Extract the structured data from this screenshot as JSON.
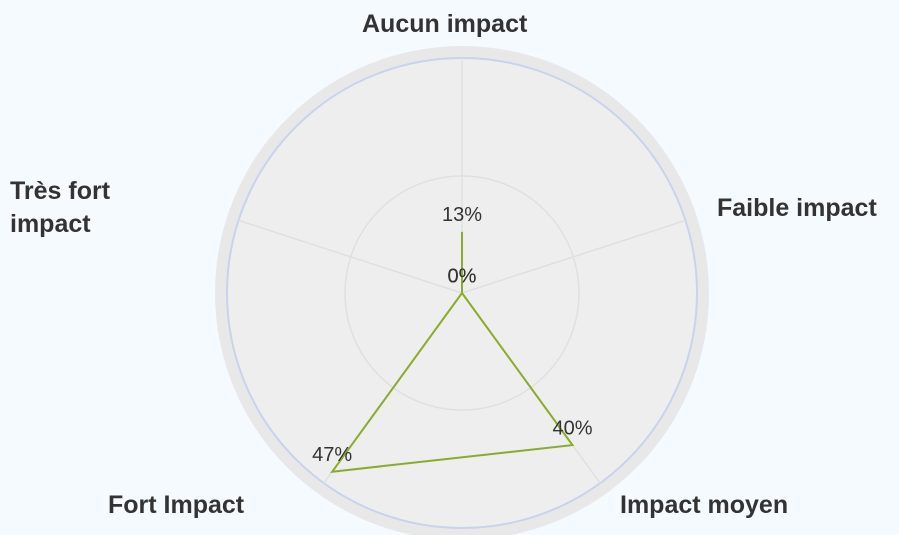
{
  "chart_data": {
    "type": "radar",
    "categories": [
      "Aucun impact",
      "Faible impact",
      "Impact moyen",
      "Fort Impact",
      "Très fort impact"
    ],
    "values": [
      13,
      0,
      40,
      47,
      0
    ],
    "value_labels": [
      "13%",
      "0%",
      "40%",
      "47%",
      "0%"
    ],
    "color": "#8aab2b",
    "ylim": [
      0,
      50
    ]
  }
}
